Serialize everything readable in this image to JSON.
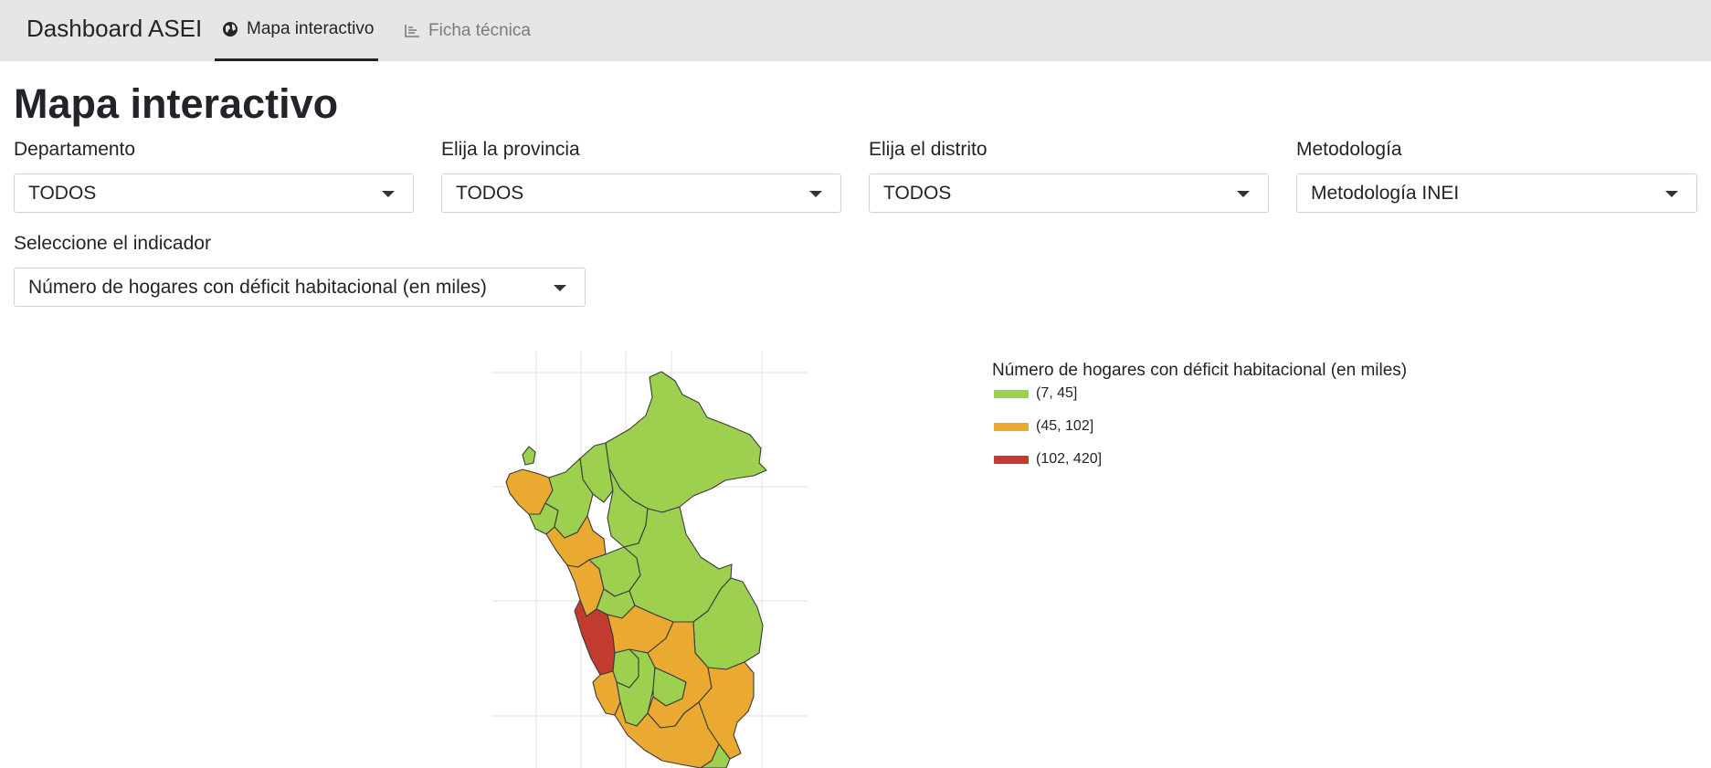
{
  "app": {
    "brand": "Dashboard ASEI"
  },
  "tabs": [
    {
      "label": "Mapa interactivo",
      "icon": "globe-icon",
      "active": true
    },
    {
      "label": "Ficha técnica",
      "icon": "chart-icon",
      "active": false
    }
  ],
  "page": {
    "title": "Mapa interactivo"
  },
  "filters": {
    "departamento": {
      "label": "Departamento",
      "value": "TODOS"
    },
    "provincia": {
      "label": "Elija la provincia",
      "value": "TODOS"
    },
    "distrito": {
      "label": "Elija el distrito",
      "value": "TODOS"
    },
    "metodologia": {
      "label": "Metodología",
      "value": "Metodología INEI"
    },
    "indicador": {
      "label": "Seleccione el indicador",
      "value": "Número de hogares con déficit habitacional (en miles)"
    }
  },
  "legend": {
    "title": "Número de hogares con déficit habitacional (en miles)",
    "items": [
      {
        "label": "(7, 45]",
        "color": "#9dd04e"
      },
      {
        "label": "(45, 102]",
        "color": "#eaa931"
      },
      {
        "label": "(102, 420]",
        "color": "#c23b2f"
      }
    ]
  },
  "colors": {
    "navbar": "#e6e6e6",
    "low": "#9dd04e",
    "mid": "#eaa931",
    "high": "#c23b2f",
    "border": "#3a3a3a",
    "grid": "#ebebeb"
  }
}
